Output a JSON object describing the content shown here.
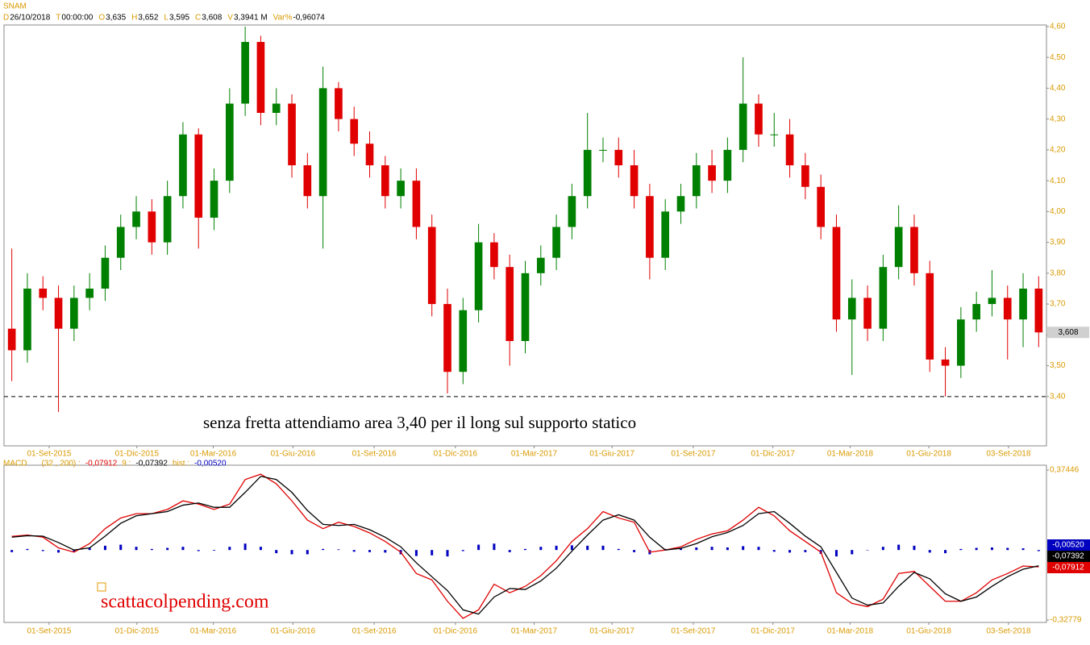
{
  "chart_data": [
    {
      "type": "candlestick",
      "title": "SNAM",
      "info": [
        {
          "key": "D",
          "value": "26/10/2018"
        },
        {
          "key": "T",
          "value": "00:00:00"
        },
        {
          "key": "O",
          "value": "3,635"
        },
        {
          "key": "H",
          "value": "3,652"
        },
        {
          "key": "L",
          "value": "3,595"
        },
        {
          "key": "C",
          "value": "3,608"
        },
        {
          "key": "V",
          "value": "3,3941 M"
        },
        {
          "key": "Var%",
          "value": "-0,96074"
        }
      ],
      "xlim": [
        0,
        67
      ],
      "xticks": [
        {
          "value": 2.9,
          "label": "01-Set-2015"
        },
        {
          "value": 8.54,
          "label": "01-Dic-2015"
        },
        {
          "value": 13.45,
          "label": "01-Mar-2016"
        },
        {
          "value": 18.57,
          "label": "01-Giu-2016"
        },
        {
          "value": 23.79,
          "label": "01-Set-2016"
        },
        {
          "value": 29.01,
          "label": "01-Dic-2016"
        },
        {
          "value": 34.07,
          "label": "01-Mar-2017"
        },
        {
          "value": 39.08,
          "label": "01-Giu-2017"
        },
        {
          "value": 44.3,
          "label": "01-Set-2017"
        },
        {
          "value": 49.42,
          "label": "01-Dic-2017"
        },
        {
          "value": 54.38,
          "label": "01-Mar-2018"
        },
        {
          "value": 59.44,
          "label": "01-Giu-2018"
        },
        {
          "value": 64.56,
          "label": "03-Set-2018"
        }
      ],
      "ylim": [
        3.24,
        4.605
      ],
      "yticks": [
        {
          "value": 3.4,
          "label": "3,40"
        },
        {
          "value": 3.5,
          "label": "3,50"
        },
        {
          "value": 3.6,
          "label": "3,60"
        },
        {
          "value": 3.7,
          "label": "3,70"
        },
        {
          "value": 3.8,
          "label": "3,80"
        },
        {
          "value": 3.9,
          "label": "3,90"
        },
        {
          "value": 4,
          "label": "4,00"
        },
        {
          "value": 4.1,
          "label": "4,10"
        },
        {
          "value": 4.2,
          "label": "4,20"
        },
        {
          "value": 4.3,
          "label": "4,30"
        },
        {
          "value": 4.4,
          "label": "4,40"
        },
        {
          "value": 4.5,
          "label": "4,50"
        },
        {
          "value": 4.6,
          "label": "4,60"
        }
      ],
      "open": [
        3.62,
        3.55,
        3.75,
        3.72,
        3.62,
        3.72,
        3.75,
        3.85,
        3.95,
        4.0,
        3.9,
        4.05,
        4.25,
        3.98,
        4.1,
        4.35,
        4.55,
        4.32,
        4.35,
        4.15,
        4.05,
        4.4,
        4.3,
        4.22,
        4.15,
        4.05,
        4.1,
        3.95,
        3.7,
        3.48,
        3.68,
        3.9,
        3.82,
        3.58,
        3.8,
        3.85,
        3.95,
        4.05,
        4.2,
        4.2,
        4.15,
        4.05,
        3.85,
        4.0,
        4.05,
        4.15,
        4.1,
        4.2,
        4.35,
        4.25,
        4.25,
        4.15,
        4.08,
        3.95,
        3.65,
        3.72,
        3.62,
        3.82,
        3.95,
        3.8,
        3.52,
        3.5,
        3.65,
        3.7,
        3.72,
        3.65,
        3.75
      ],
      "high": [
        3.88,
        3.8,
        3.79,
        3.76,
        3.76,
        3.8,
        3.89,
        3.99,
        4.05,
        4.04,
        4.1,
        4.29,
        4.27,
        4.14,
        4.4,
        4.6,
        4.57,
        4.4,
        4.38,
        4.19,
        4.47,
        4.42,
        4.34,
        4.26,
        4.18,
        4.14,
        4.14,
        3.99,
        3.75,
        3.72,
        3.96,
        3.93,
        3.86,
        3.84,
        3.89,
        3.99,
        4.09,
        4.32,
        4.24,
        4.24,
        4.2,
        4.09,
        4.04,
        4.09,
        4.19,
        4.2,
        4.24,
        4.5,
        4.38,
        4.32,
        4.3,
        4.19,
        4.12,
        3.99,
        3.78,
        3.76,
        3.86,
        4.02,
        3.99,
        3.84,
        3.56,
        3.69,
        3.74,
        3.81,
        3.76,
        3.8,
        3.79
      ],
      "low": [
        3.45,
        3.51,
        3.68,
        3.35,
        3.58,
        3.68,
        3.71,
        3.81,
        3.91,
        3.86,
        3.86,
        4.01,
        3.88,
        3.94,
        4.06,
        4.31,
        4.28,
        4.28,
        4.11,
        4.01,
        3.88,
        4.26,
        4.18,
        4.11,
        4.01,
        4.01,
        3.91,
        3.66,
        3.41,
        3.44,
        3.64,
        3.78,
        3.5,
        3.54,
        3.76,
        3.81,
        3.91,
        4.01,
        4.16,
        4.11,
        4.01,
        3.78,
        3.81,
        3.96,
        4.01,
        4.06,
        4.06,
        4.16,
        4.21,
        4.21,
        4.11,
        4.04,
        3.91,
        3.61,
        3.47,
        3.58,
        3.58,
        3.78,
        3.76,
        3.48,
        3.4,
        3.46,
        3.61,
        3.66,
        3.52,
        3.56,
        3.56
      ],
      "close": [
        3.55,
        3.75,
        3.72,
        3.62,
        3.72,
        3.75,
        3.85,
        3.95,
        4.0,
        3.9,
        4.05,
        4.25,
        3.98,
        4.1,
        4.35,
        4.55,
        4.32,
        4.35,
        4.15,
        4.05,
        4.4,
        4.3,
        4.22,
        4.15,
        4.05,
        4.1,
        3.95,
        3.7,
        3.48,
        3.68,
        3.9,
        3.82,
        3.58,
        3.8,
        3.85,
        3.95,
        4.05,
        4.2,
        4.2,
        4.15,
        4.05,
        3.85,
        4.0,
        4.05,
        4.15,
        4.1,
        4.2,
        4.35,
        4.25,
        4.25,
        4.15,
        4.08,
        3.95,
        3.65,
        3.72,
        3.62,
        3.82,
        3.95,
        3.8,
        3.52,
        3.5,
        3.65,
        3.7,
        3.72,
        3.65,
        3.75,
        3.608
      ],
      "up_color": "#008000",
      "down_color": "#e00000",
      "last_price": {
        "value": 3.608,
        "label": "3,608"
      },
      "support": 3.4,
      "annotation": "senza fretta attendiamo area 3,40 per il long sul supporto statico",
      "watermark": "scattacolpending.com"
    },
    {
      "type": "macd",
      "title": "MACD",
      "params": "(32 , 200) :",
      "signal_params": "9 :",
      "hist_title": "hist :",
      "ylim": [
        -0.339,
        0.397
      ],
      "yticks": [
        {
          "value": 0.37446,
          "label": "0,37446"
        },
        {
          "value": -0.32779,
          "label": "-0,32779"
        }
      ],
      "series": [
        {
          "color": "#e00000",
          "last": {
            "value": -0.07912,
            "label": "-0,07912"
          },
          "values": [
            0.064,
            0.07,
            0.06,
            0.01,
            -0.01,
            0.03,
            0.1,
            0.15,
            0.17,
            0.17,
            0.19,
            0.23,
            0.215,
            0.19,
            0.215,
            0.33,
            0.355,
            0.31,
            0.23,
            0.14,
            0.1,
            0.13,
            0.11,
            0.08,
            0.04,
            -0.01,
            -0.11,
            -0.14,
            -0.24,
            -0.32,
            -0.28,
            -0.16,
            -0.2,
            -0.17,
            -0.12,
            -0.05,
            0.04,
            0.1,
            0.18,
            0.15,
            0.13,
            -0.01,
            0.0,
            0.015,
            0.05,
            0.075,
            0.09,
            0.14,
            0.2,
            0.16,
            0.09,
            0.04,
            -0.01,
            -0.2,
            -0.25,
            -0.265,
            -0.23,
            -0.11,
            -0.1,
            -0.17,
            -0.24,
            -0.24,
            -0.2,
            -0.14,
            -0.11,
            -0.075,
            -0.07912
          ]
        },
        {
          "color": "#000000",
          "last": {
            "value": -0.07392,
            "label": "-0,07392"
          },
          "values": [
            0.06,
            0.067,
            0.065,
            0.035,
            0.0,
            0.01,
            0.065,
            0.125,
            0.16,
            0.17,
            0.18,
            0.21,
            0.22,
            0.2,
            0.2,
            0.27,
            0.345,
            0.33,
            0.27,
            0.185,
            0.12,
            0.115,
            0.12,
            0.095,
            0.06,
            0.015,
            -0.06,
            -0.125,
            -0.19,
            -0.28,
            -0.3,
            -0.22,
            -0.18,
            -0.185,
            -0.145,
            -0.085,
            -0.005,
            0.07,
            0.14,
            0.165,
            0.14,
            0.06,
            0.0,
            0.008,
            0.03,
            0.062,
            0.082,
            0.115,
            0.17,
            0.18,
            0.125,
            0.065,
            0.015,
            -0.105,
            -0.225,
            -0.258,
            -0.248,
            -0.17,
            -0.105,
            -0.135,
            -0.205,
            -0.24,
            -0.22,
            -0.17,
            -0.125,
            -0.09,
            -0.07392
          ]
        }
      ],
      "hist": {
        "color": "#0000c0",
        "last": {
          "value": -0.0052,
          "label": "-0,00520"
        },
        "values": [
          -0.01,
          0.005,
          -0.005,
          -0.012,
          -0.008,
          0.01,
          0.02,
          0.025,
          0.015,
          0.005,
          0.01,
          0.015,
          -0.005,
          -0.003,
          0.015,
          0.03,
          0.015,
          -0.015,
          -0.02,
          -0.02,
          0.005,
          0.003,
          -0.008,
          -0.01,
          -0.012,
          -0.02,
          -0.028,
          -0.025,
          -0.03,
          -0.005,
          0.025,
          0.03,
          -0.01,
          0.005,
          0.015,
          0.02,
          0.022,
          0.02,
          0.02,
          0.005,
          -0.01,
          -0.02,
          0.005,
          0.008,
          0.012,
          0.015,
          0.012,
          0.018,
          0.015,
          -0.008,
          -0.012,
          -0.01,
          -0.018,
          -0.03,
          -0.02,
          0.0,
          0.015,
          0.025,
          0.02,
          -0.012,
          -0.015,
          0.005,
          0.01,
          0.012,
          0.01,
          0.008,
          -0.0052
        ]
      }
    }
  ]
}
